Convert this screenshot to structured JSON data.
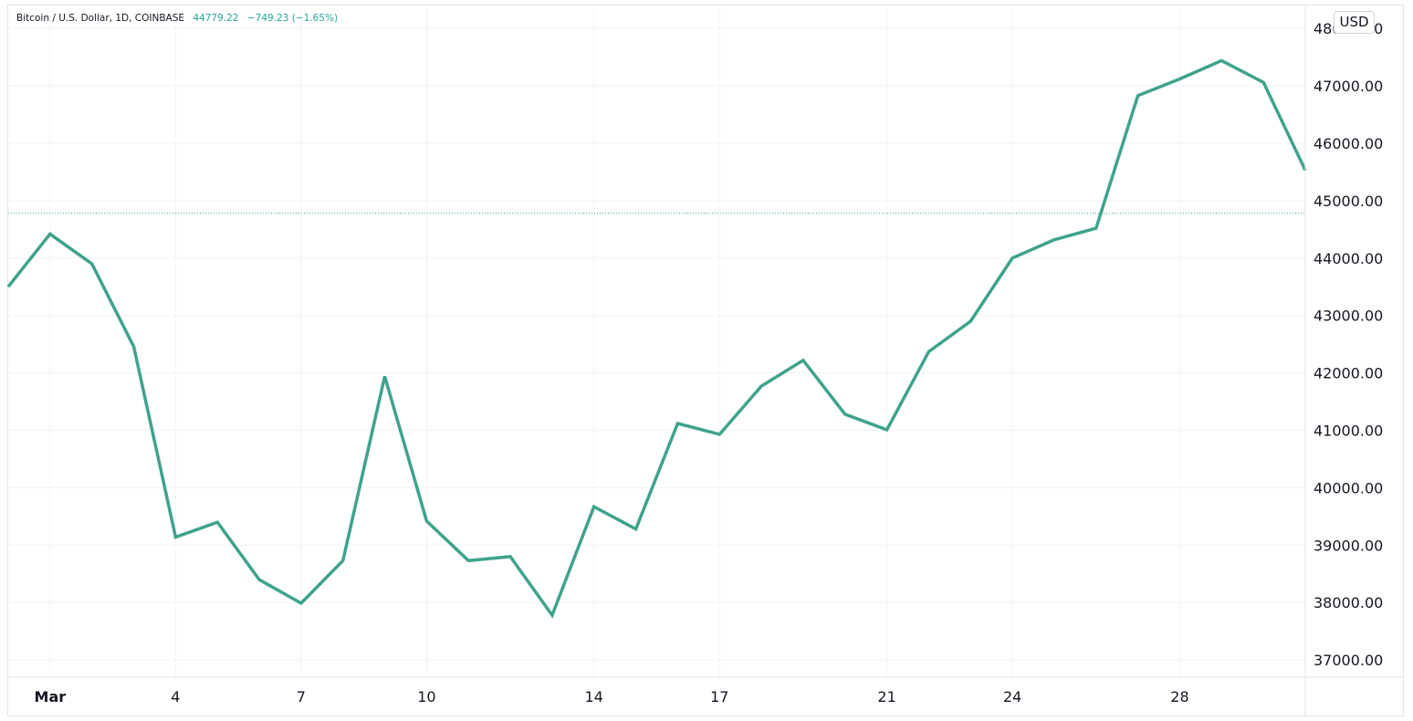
{
  "header": {
    "symbol": "Bitcoin / U.S. Dollar, 1D, COINBASE",
    "last_price": "44779.22",
    "change": "−749.23 (−1.65%)"
  },
  "currency_button": {
    "label": "USD"
  },
  "colors": {
    "line": "#3fa38c",
    "accent": "#26a69a",
    "grid": "#f0f3fa",
    "price_line": "#26a69a"
  },
  "chart_data": {
    "type": "line",
    "title": "",
    "xlabel": "",
    "ylabel": "",
    "series": [
      {
        "values": [
          {
            "date": "2022-02-28",
            "close": 43500
          },
          {
            "date": "2022-03-01",
            "close": 44420
          },
          {
            "date": "2022-03-02",
            "close": 43900
          },
          {
            "date": "2022-03-03",
            "close": 42460
          },
          {
            "date": "2022-03-04",
            "close": 39140
          },
          {
            "date": "2022-03-05",
            "close": 39400
          },
          {
            "date": "2022-03-06",
            "close": 38400
          },
          {
            "date": "2022-03-07",
            "close": 37990
          },
          {
            "date": "2022-03-08",
            "close": 38730
          },
          {
            "date": "2022-03-09",
            "close": 41940
          },
          {
            "date": "2022-03-10",
            "close": 39420
          },
          {
            "date": "2022-03-11",
            "close": 38730
          },
          {
            "date": "2022-03-12",
            "close": 38800
          },
          {
            "date": "2022-03-13",
            "close": 37780
          },
          {
            "date": "2022-03-14",
            "close": 39670
          },
          {
            "date": "2022-03-15",
            "close": 39280
          },
          {
            "date": "2022-03-16",
            "close": 41120
          },
          {
            "date": "2022-03-17",
            "close": 40930
          },
          {
            "date": "2022-03-18",
            "close": 41770
          },
          {
            "date": "2022-03-19",
            "close": 42220
          },
          {
            "date": "2022-03-20",
            "close": 41280
          },
          {
            "date": "2022-03-21",
            "close": 41010
          },
          {
            "date": "2022-03-22",
            "close": 42370
          },
          {
            "date": "2022-03-23",
            "close": 42900
          },
          {
            "date": "2022-03-24",
            "close": 44000
          },
          {
            "date": "2022-03-25",
            "close": 44320
          },
          {
            "date": "2022-03-26",
            "close": 44520
          },
          {
            "date": "2022-03-27",
            "close": 46830
          },
          {
            "date": "2022-03-28",
            "close": 47120
          },
          {
            "date": "2022-03-29",
            "close": 47440
          },
          {
            "date": "2022-03-30",
            "close": 47060
          },
          {
            "date": "2022-03-31",
            "close": 45530
          }
        ]
      }
    ],
    "current_price_line": 44779.22,
    "ylim": [
      36700,
      48400
    ],
    "xlim": [
      "2022-02-28",
      "2022-03-31"
    ],
    "y_ticks": [
      "48000.00",
      "47000.00",
      "46000.00",
      "45000.00",
      "44000.00",
      "43000.00",
      "42000.00",
      "41000.00",
      "40000.00",
      "39000.00",
      "38000.00",
      "37000.00"
    ],
    "x_ticks": [
      {
        "label": "Mar",
        "date": "2022-03-01",
        "bold": true
      },
      {
        "label": "4",
        "date": "2022-03-04",
        "bold": false
      },
      {
        "label": "7",
        "date": "2022-03-07",
        "bold": false
      },
      {
        "label": "10",
        "date": "2022-03-10",
        "bold": false
      },
      {
        "label": "14",
        "date": "2022-03-14",
        "bold": false
      },
      {
        "label": "17",
        "date": "2022-03-17",
        "bold": false
      },
      {
        "label": "21",
        "date": "2022-03-21",
        "bold": false
      },
      {
        "label": "24",
        "date": "2022-03-24",
        "bold": false
      },
      {
        "label": "28",
        "date": "2022-03-28",
        "bold": false
      }
    ],
    "grid": true,
    "legend": "none"
  }
}
